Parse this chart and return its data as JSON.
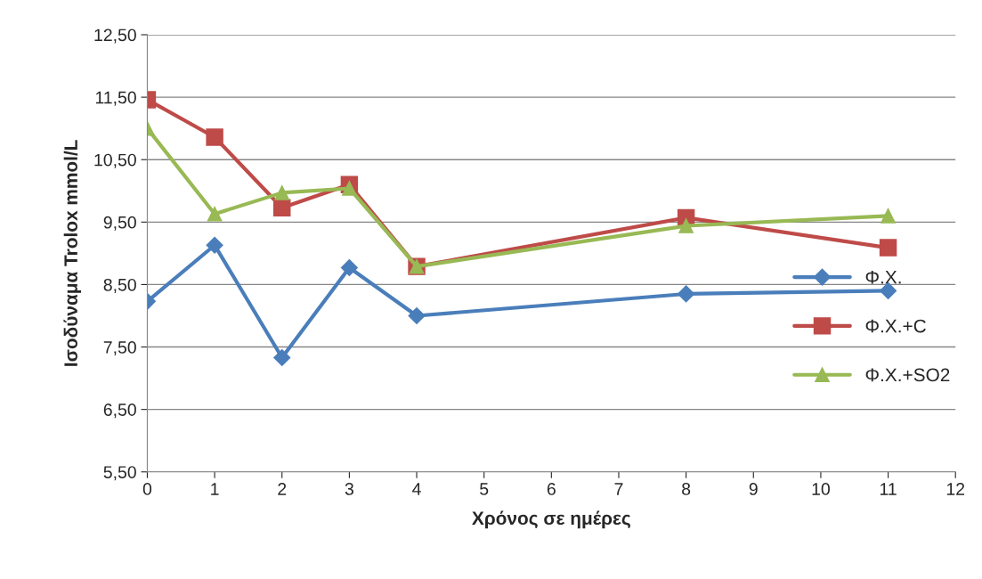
{
  "chart_data": {
    "type": "line",
    "xlabel": "Χρόνος σε ημέρες",
    "ylabel": "Ισοδύναμα Trolox mmol/L",
    "x": [
      0,
      1,
      2,
      3,
      4,
      8,
      11
    ],
    "series": [
      {
        "name": "Φ.Χ.",
        "color": "#4a7ebb",
        "marker": "diamond",
        "values": [
          8.23,
          9.13,
          7.33,
          8.77,
          8.0,
          8.35,
          8.4
        ]
      },
      {
        "name": "Φ.Χ.+C",
        "color": "#be4b48",
        "marker": "square",
        "values": [
          11.46,
          10.86,
          9.73,
          10.1,
          8.79,
          9.57,
          9.09
        ]
      },
      {
        "name": "Φ.Χ.+SO2",
        "color": "#98b954",
        "marker": "triangle",
        "values": [
          11.0,
          9.63,
          9.97,
          10.04,
          8.79,
          9.44,
          9.6
        ]
      }
    ],
    "xlim": [
      0,
      12
    ],
    "xticks": [
      0,
      1,
      2,
      3,
      4,
      5,
      6,
      7,
      8,
      9,
      10,
      11,
      12
    ],
    "ylim": [
      5.5,
      12.5
    ],
    "yticks": [
      {
        "value": 5.5,
        "label": "5,50"
      },
      {
        "value": 6.5,
        "label": "6,50"
      },
      {
        "value": 7.5,
        "label": "7,50"
      },
      {
        "value": 8.5,
        "label": "8,50"
      },
      {
        "value": 9.5,
        "label": "9,50"
      },
      {
        "value": 10.5,
        "label": "10,50"
      },
      {
        "value": 11.5,
        "label": "11,50"
      },
      {
        "value": 12.5,
        "label": "12,50"
      }
    ],
    "grid": "y",
    "legend": "right",
    "line_style": "solid"
  }
}
